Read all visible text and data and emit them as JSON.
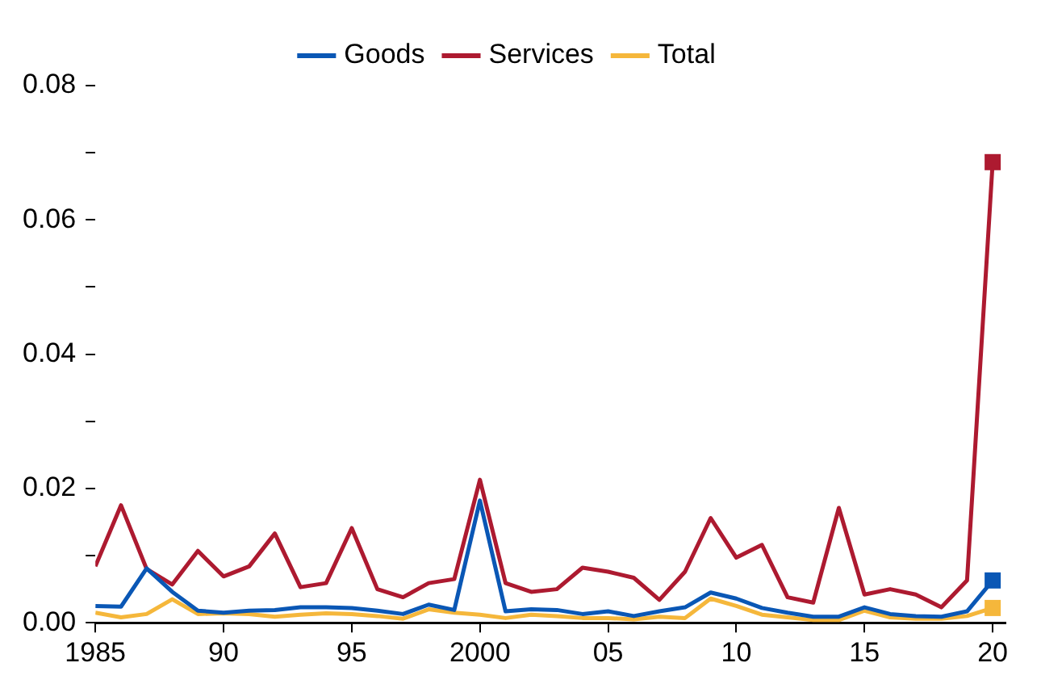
{
  "chart_data": {
    "type": "line",
    "x": [
      1985,
      1986,
      1987,
      1988,
      1989,
      1990,
      1991,
      1992,
      1993,
      1994,
      1995,
      1996,
      1997,
      1998,
      1999,
      2000,
      2001,
      2002,
      2003,
      2004,
      2005,
      2006,
      2007,
      2008,
      2009,
      2010,
      2011,
      2012,
      2013,
      2014,
      2015,
      2016,
      2017,
      2018,
      2019,
      2020
    ],
    "series": [
      {
        "name": "Goods",
        "color": "#0a57b5",
        "values": [
          0.0025,
          0.0024,
          0.0081,
          0.0046,
          0.0018,
          0.0015,
          0.0018,
          0.0019,
          0.0023,
          0.0023,
          0.0022,
          0.0018,
          0.0013,
          0.0027,
          0.0019,
          0.0182,
          0.0017,
          0.002,
          0.0019,
          0.0013,
          0.0017,
          0.001,
          0.0017,
          0.0023,
          0.0045,
          0.0036,
          0.0022,
          0.0015,
          0.0009,
          0.0009,
          0.0023,
          0.0013,
          0.001,
          0.0009,
          0.0017,
          0.0063
        ]
      },
      {
        "name": "Services",
        "color": "#ad1a30",
        "values": [
          0.0084,
          0.0175,
          0.008,
          0.0057,
          0.0107,
          0.0069,
          0.0084,
          0.0133,
          0.0053,
          0.0059,
          0.0141,
          0.005,
          0.0038,
          0.0059,
          0.0065,
          0.0213,
          0.0059,
          0.0046,
          0.005,
          0.0082,
          0.0076,
          0.0067,
          0.0034,
          0.0076,
          0.0156,
          0.0097,
          0.0116,
          0.0038,
          0.003,
          0.0171,
          0.0042,
          0.005,
          0.0042,
          0.0023,
          0.0063,
          0.0686
        ]
      },
      {
        "name": "Total",
        "color": "#f5b73b",
        "values": [
          0.0015,
          0.0008,
          0.0013,
          0.0035,
          0.0013,
          0.0014,
          0.0013,
          0.0009,
          0.0012,
          0.0014,
          0.0013,
          0.001,
          0.0006,
          0.002,
          0.0015,
          0.0012,
          0.0007,
          0.0012,
          0.001,
          0.0007,
          0.0007,
          0.0005,
          0.0009,
          0.0007,
          0.0036,
          0.0025,
          0.0012,
          0.0008,
          0.0004,
          0.0004,
          0.0018,
          0.0008,
          0.0006,
          0.0006,
          0.001,
          0.0022
        ]
      }
    ],
    "xlim": [
      1985,
      2020.5
    ],
    "xticks": [
      1985,
      {
        "value": 1990,
        "label": "90"
      },
      {
        "value": 1995,
        "label": "95"
      },
      2000,
      {
        "value": 2005,
        "label": "05"
      },
      {
        "value": 2010,
        "label": "10"
      },
      {
        "value": 2015,
        "label": "15"
      },
      {
        "value": 2020,
        "label": "20"
      }
    ],
    "ylim": [
      0,
      0.08
    ],
    "yticks": [
      {
        "value": 0,
        "label": "0.00"
      },
      {
        "value": 0.01,
        "label": null
      },
      {
        "value": 0.02,
        "label": "0.02"
      },
      {
        "value": 0.03,
        "label": null
      },
      {
        "value": 0.04,
        "label": "0.04"
      },
      {
        "value": 0.05,
        "label": null
      },
      {
        "value": 0.06,
        "label": "0.06"
      },
      {
        "value": 0.07,
        "label": null
      },
      {
        "value": 0.08,
        "label": "0.08"
      }
    ],
    "grid": false,
    "legend": "top",
    "line_style": "solid"
  }
}
